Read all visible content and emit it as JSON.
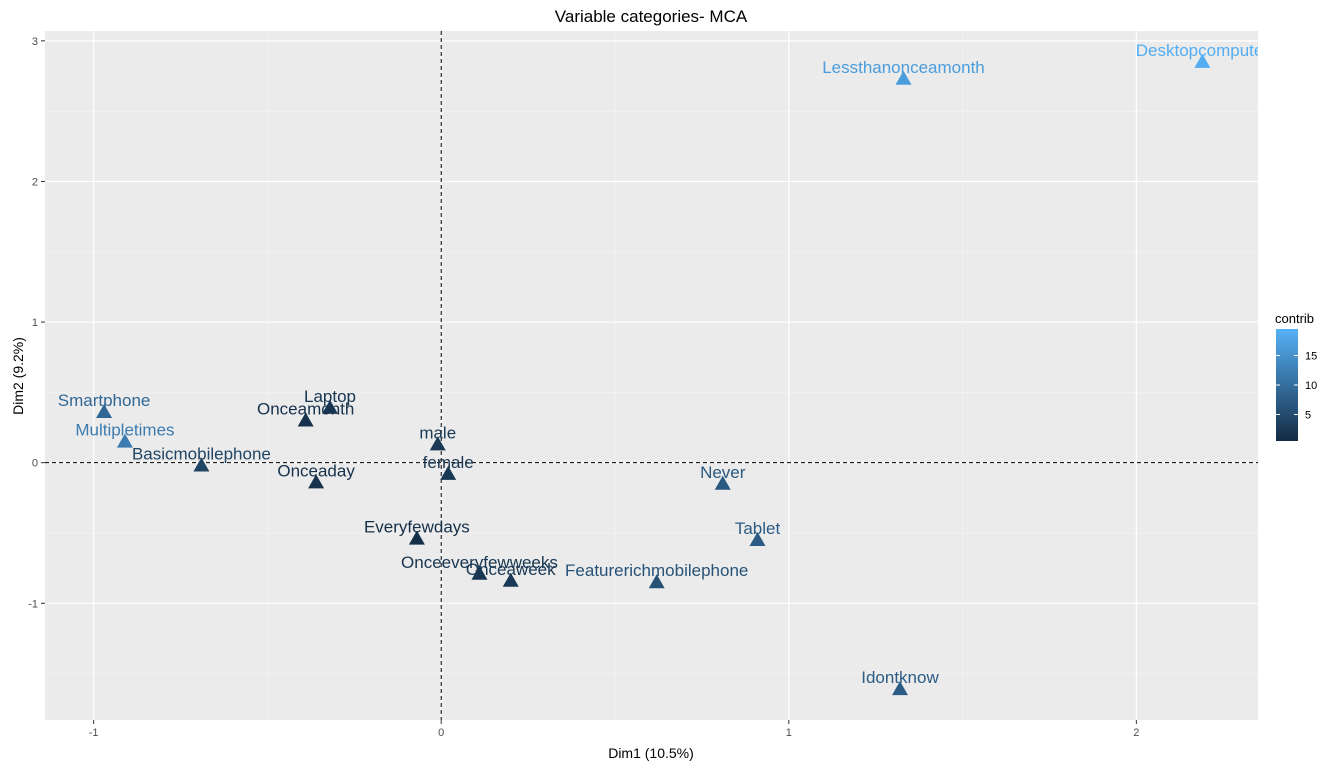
{
  "chart_data": {
    "type": "scatter",
    "title": "Variable categories- MCA",
    "xlabel": "Dim1 (10.5%)",
    "ylabel": "Dim2 (9.2%)",
    "xlim": [
      -1.14,
      2.35
    ],
    "ylim": [
      -1.83,
      3.07
    ],
    "xticks": [
      -1,
      0,
      1,
      2
    ],
    "yticks": [
      -1,
      0,
      1,
      2,
      3
    ],
    "grid": true,
    "reference_lines": {
      "x": 0,
      "y": 0,
      "style": "dashed"
    },
    "points": [
      {
        "label": "Desktopcomputer",
        "x": 2.19,
        "y": 2.85,
        "contrib": 19.0
      },
      {
        "label": "Lessthanonceamonth",
        "x": 1.33,
        "y": 2.73,
        "contrib": 16.5
      },
      {
        "label": "Smartphone",
        "x": -0.97,
        "y": 0.36,
        "contrib": 9.0
      },
      {
        "label": "Multipletimes",
        "x": -0.91,
        "y": 0.15,
        "contrib": 12.0
      },
      {
        "label": "Laptop",
        "x": -0.32,
        "y": 0.39,
        "contrib": 2.0
      },
      {
        "label": "Onceamonth",
        "x": -0.39,
        "y": 0.3,
        "contrib": 1.5
      },
      {
        "label": "male",
        "x": -0.01,
        "y": 0.13,
        "contrib": 2.5
      },
      {
        "label": "Basicmobilephone",
        "x": -0.69,
        "y": -0.02,
        "contrib": 4.0
      },
      {
        "label": "female",
        "x": 0.02,
        "y": -0.08,
        "contrib": 2.5
      },
      {
        "label": "Onceaday",
        "x": -0.36,
        "y": -0.14,
        "contrib": 1.5
      },
      {
        "label": "Never",
        "x": 0.81,
        "y": -0.15,
        "contrib": 7.0
      },
      {
        "label": "Everyfewdays",
        "x": -0.07,
        "y": -0.54,
        "contrib": 1.0
      },
      {
        "label": "Tablet",
        "x": 0.91,
        "y": -0.55,
        "contrib": 7.5
      },
      {
        "label": "Onceeveryfewweeks",
        "x": 0.11,
        "y": -0.79,
        "contrib": 2.0
      },
      {
        "label": "Onceaweek",
        "x": 0.2,
        "y": -0.84,
        "contrib": 2.5
      },
      {
        "label": "Featurerichmobilephone",
        "x": 0.62,
        "y": -0.85,
        "contrib": 6.0
      },
      {
        "label": "Idontknow",
        "x": 1.32,
        "y": -1.61,
        "contrib": 7.5
      }
    ],
    "legend": {
      "title": "contrib",
      "placement": "right",
      "breaks": [
        5,
        10,
        15
      ],
      "range": [
        0.5,
        19.5
      ],
      "low_color": "#132B43",
      "high_color": "#56B1F7"
    }
  },
  "colors": {
    "panel_background": "#EBEBEB",
    "grid_major": "#FFFFFF",
    "grid_minor": "#F5F5F5",
    "reference_line": "#000000"
  }
}
